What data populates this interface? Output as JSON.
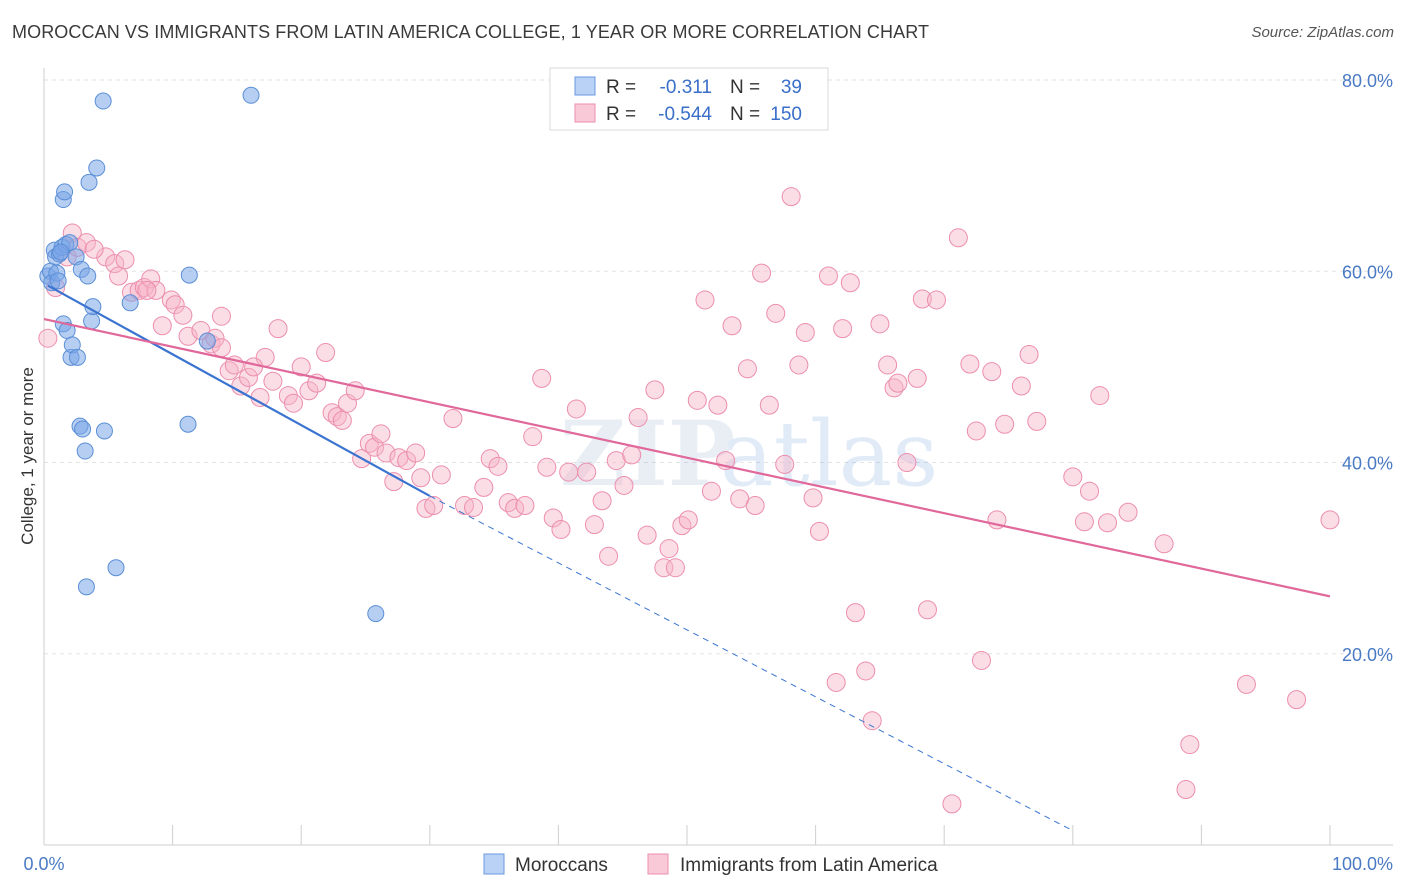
{
  "title": "MOROCCAN VS IMMIGRANTS FROM LATIN AMERICA COLLEGE, 1 YEAR OR MORE CORRELATION CHART",
  "source": "Source: ZipAtlas.com",
  "watermark": {
    "zip": "ZIP",
    "atlas": "atlas"
  },
  "legend": {
    "rows": [
      {
        "r_label": "R =",
        "r_value": "-0.311",
        "n_label": "N =",
        "n_value": "39",
        "color": "#7aa6e8"
      },
      {
        "r_label": "R =",
        "r_value": "-0.544",
        "n_label": "N =",
        "n_value": "150",
        "color": "#f28fb0"
      }
    ]
  },
  "chart_data": {
    "type": "scatter",
    "title": "MOROCCAN VS IMMIGRANTS FROM LATIN AMERICA COLLEGE, 1 YEAR OR MORE CORRELATION CHART",
    "xlabel": "",
    "ylabel": "College, 1 year or more",
    "xlim": [
      0,
      100
    ],
    "ylim": [
      0,
      80
    ],
    "x_tick_labels": [
      "0.0%",
      "100.0%"
    ],
    "y_tick_labels": [
      "20.0%",
      "40.0%",
      "60.0%",
      "80.0%"
    ],
    "y_tick_values": [
      20,
      40,
      60,
      80
    ],
    "grid": true,
    "series": [
      {
        "name": "Moroccans",
        "color": "#7aa6e8",
        "stroke": "#5b8fd6",
        "line_color": "#3a74d0",
        "trend": {
          "x0": 0.3,
          "y0": 58.5,
          "x1": 30,
          "y1": 36.5,
          "dash_to": [
            80,
            1.5
          ]
        },
        "points": [
          [
            0.3,
            59.5
          ],
          [
            0.5,
            60.0
          ],
          [
            0.6,
            58.8
          ],
          [
            0.8,
            62.2
          ],
          [
            0.9,
            61.5
          ],
          [
            1.0,
            59.8
          ],
          [
            1.1,
            59.0
          ],
          [
            1.2,
            61.8
          ],
          [
            1.4,
            62.5
          ],
          [
            1.5,
            54.5
          ],
          [
            1.7,
            62.8
          ],
          [
            1.8,
            53.8
          ],
          [
            2.0,
            63.0
          ],
          [
            2.1,
            51.0
          ],
          [
            2.2,
            52.3
          ],
          [
            2.5,
            61.5
          ],
          [
            2.6,
            51.0
          ],
          [
            2.8,
            43.8
          ],
          [
            2.9,
            60.2
          ],
          [
            3.0,
            43.5
          ],
          [
            3.2,
            41.2
          ],
          [
            3.3,
            27.0
          ],
          [
            3.4,
            59.5
          ],
          [
            3.5,
            69.3
          ],
          [
            3.7,
            54.8
          ],
          [
            3.8,
            56.3
          ],
          [
            4.1,
            70.8
          ],
          [
            4.6,
            77.8
          ],
          [
            4.7,
            43.3
          ],
          [
            5.6,
            29.0
          ],
          [
            1.5,
            67.5
          ],
          [
            1.6,
            68.3
          ],
          [
            6.7,
            56.7
          ],
          [
            11.3,
            59.6
          ],
          [
            11.2,
            44.0
          ],
          [
            12.7,
            52.7
          ],
          [
            16.1,
            78.4
          ],
          [
            25.8,
            24.2
          ],
          [
            1.3,
            62.0
          ]
        ]
      },
      {
        "name": "Immigrants from Latin America",
        "color": "#f6b3c8",
        "stroke": "#ec8eae",
        "line_color": "#e0689a",
        "trend": {
          "x0": 0,
          "y0": 55.0,
          "x1": 100,
          "y1": 26.0
        },
        "points": [
          [
            0.3,
            53.0
          ],
          [
            0.9,
            58.3
          ],
          [
            1.8,
            61.5
          ],
          [
            2.2,
            64.0
          ],
          [
            2.6,
            62.5
          ],
          [
            3.3,
            63.0
          ],
          [
            4.8,
            61.5
          ],
          [
            5.5,
            60.8
          ],
          [
            5.8,
            59.5
          ],
          [
            6.3,
            61.2
          ],
          [
            6.8,
            57.8
          ],
          [
            7.4,
            58.0
          ],
          [
            7.8,
            58.3
          ],
          [
            8.3,
            59.2
          ],
          [
            8.7,
            58.0
          ],
          [
            9.2,
            54.3
          ],
          [
            9.9,
            57.0
          ],
          [
            10.2,
            56.5
          ],
          [
            10.8,
            55.4
          ],
          [
            11.2,
            53.2
          ],
          [
            12.2,
            53.8
          ],
          [
            13.0,
            52.4
          ],
          [
            13.3,
            53.0
          ],
          [
            13.8,
            55.3
          ],
          [
            14.4,
            49.6
          ],
          [
            14.8,
            50.2
          ],
          [
            15.3,
            48.0
          ],
          [
            15.9,
            48.9
          ],
          [
            16.8,
            46.8
          ],
          [
            17.2,
            51.0
          ],
          [
            17.8,
            48.5
          ],
          [
            18.2,
            54.0
          ],
          [
            19.0,
            47.0
          ],
          [
            19.4,
            46.2
          ],
          [
            20.0,
            50.0
          ],
          [
            20.6,
            47.5
          ],
          [
            21.2,
            48.3
          ],
          [
            21.9,
            51.5
          ],
          [
            22.4,
            45.2
          ],
          [
            22.8,
            44.8
          ],
          [
            23.2,
            44.4
          ],
          [
            23.6,
            46.2
          ],
          [
            24.2,
            47.5
          ],
          [
            24.7,
            40.4
          ],
          [
            25.3,
            42.0
          ],
          [
            25.7,
            41.6
          ],
          [
            26.2,
            43.0
          ],
          [
            26.6,
            41.0
          ],
          [
            27.2,
            38.0
          ],
          [
            27.6,
            40.5
          ],
          [
            28.2,
            40.2
          ],
          [
            28.9,
            41.0
          ],
          [
            29.3,
            38.4
          ],
          [
            29.7,
            35.2
          ],
          [
            30.3,
            35.5
          ],
          [
            30.9,
            38.7
          ],
          [
            31.8,
            44.6
          ],
          [
            32.7,
            35.5
          ],
          [
            33.4,
            35.3
          ],
          [
            34.2,
            37.4
          ],
          [
            34.7,
            40.4
          ],
          [
            35.3,
            39.6
          ],
          [
            36.1,
            35.8
          ],
          [
            36.6,
            35.2
          ],
          [
            37.4,
            35.5
          ],
          [
            38.0,
            42.7
          ],
          [
            38.7,
            48.8
          ],
          [
            39.1,
            39.5
          ],
          [
            39.6,
            34.2
          ],
          [
            40.2,
            33.0
          ],
          [
            40.8,
            39.0
          ],
          [
            41.4,
            45.6
          ],
          [
            42.2,
            39.0
          ],
          [
            42.8,
            33.5
          ],
          [
            43.4,
            36.0
          ],
          [
            43.9,
            30.2
          ],
          [
            44.5,
            40.2
          ],
          [
            45.1,
            37.6
          ],
          [
            45.7,
            40.8
          ],
          [
            46.2,
            44.7
          ],
          [
            46.9,
            32.4
          ],
          [
            47.5,
            47.6
          ],
          [
            48.2,
            29.0
          ],
          [
            48.6,
            31.0
          ],
          [
            49.1,
            29.0
          ],
          [
            49.6,
            33.4
          ],
          [
            50.1,
            34.0
          ],
          [
            50.8,
            46.5
          ],
          [
            51.4,
            57.0
          ],
          [
            51.9,
            37.0
          ],
          [
            52.4,
            46.0
          ],
          [
            53.0,
            40.2
          ],
          [
            53.5,
            54.3
          ],
          [
            54.1,
            36.2
          ],
          [
            54.7,
            49.8
          ],
          [
            55.3,
            35.5
          ],
          [
            55.8,
            59.8
          ],
          [
            56.4,
            46.0
          ],
          [
            56.9,
            55.6
          ],
          [
            57.6,
            39.8
          ],
          [
            58.1,
            67.8
          ],
          [
            58.7,
            50.2
          ],
          [
            59.2,
            53.6
          ],
          [
            59.8,
            36.3
          ],
          [
            60.3,
            32.8
          ],
          [
            61.0,
            59.5
          ],
          [
            61.6,
            17.0
          ],
          [
            62.1,
            54.0
          ],
          [
            62.7,
            58.8
          ],
          [
            63.1,
            24.3
          ],
          [
            63.9,
            18.2
          ],
          [
            64.4,
            13.0
          ],
          [
            65.0,
            54.5
          ],
          [
            65.6,
            50.2
          ],
          [
            66.1,
            47.8
          ],
          [
            66.4,
            48.3
          ],
          [
            67.1,
            40.0
          ],
          [
            67.9,
            48.8
          ],
          [
            68.3,
            57.1
          ],
          [
            68.7,
            24.6
          ],
          [
            69.4,
            57.0
          ],
          [
            70.6,
            4.3
          ],
          [
            71.1,
            63.5
          ],
          [
            72.0,
            50.3
          ],
          [
            72.5,
            43.3
          ],
          [
            72.9,
            19.3
          ],
          [
            73.7,
            49.5
          ],
          [
            74.1,
            34.0
          ],
          [
            74.7,
            44.0
          ],
          [
            76.0,
            48.0
          ],
          [
            76.6,
            51.3
          ],
          [
            77.2,
            44.3
          ],
          [
            80.0,
            38.5
          ],
          [
            80.9,
            33.8
          ],
          [
            81.3,
            37.0
          ],
          [
            82.1,
            47.0
          ],
          [
            82.7,
            33.7
          ],
          [
            84.3,
            34.8
          ],
          [
            87.1,
            31.5
          ],
          [
            88.8,
            5.8
          ],
          [
            89.1,
            10.5
          ],
          [
            93.5,
            16.8
          ],
          [
            97.4,
            15.2
          ],
          [
            100.0,
            34.0
          ],
          [
            3.9,
            62.3
          ],
          [
            13.8,
            52.0
          ],
          [
            8.0,
            58.0
          ],
          [
            16.3,
            50.0
          ]
        ]
      }
    ]
  },
  "bottom_legend": {
    "items": [
      {
        "label": "Moroccans",
        "color": "#b9d2f6",
        "stroke": "#6b9ae0"
      },
      {
        "label": "Immigrants from Latin America",
        "color": "#f9c9d8",
        "stroke": "#ec8eae"
      }
    ]
  }
}
